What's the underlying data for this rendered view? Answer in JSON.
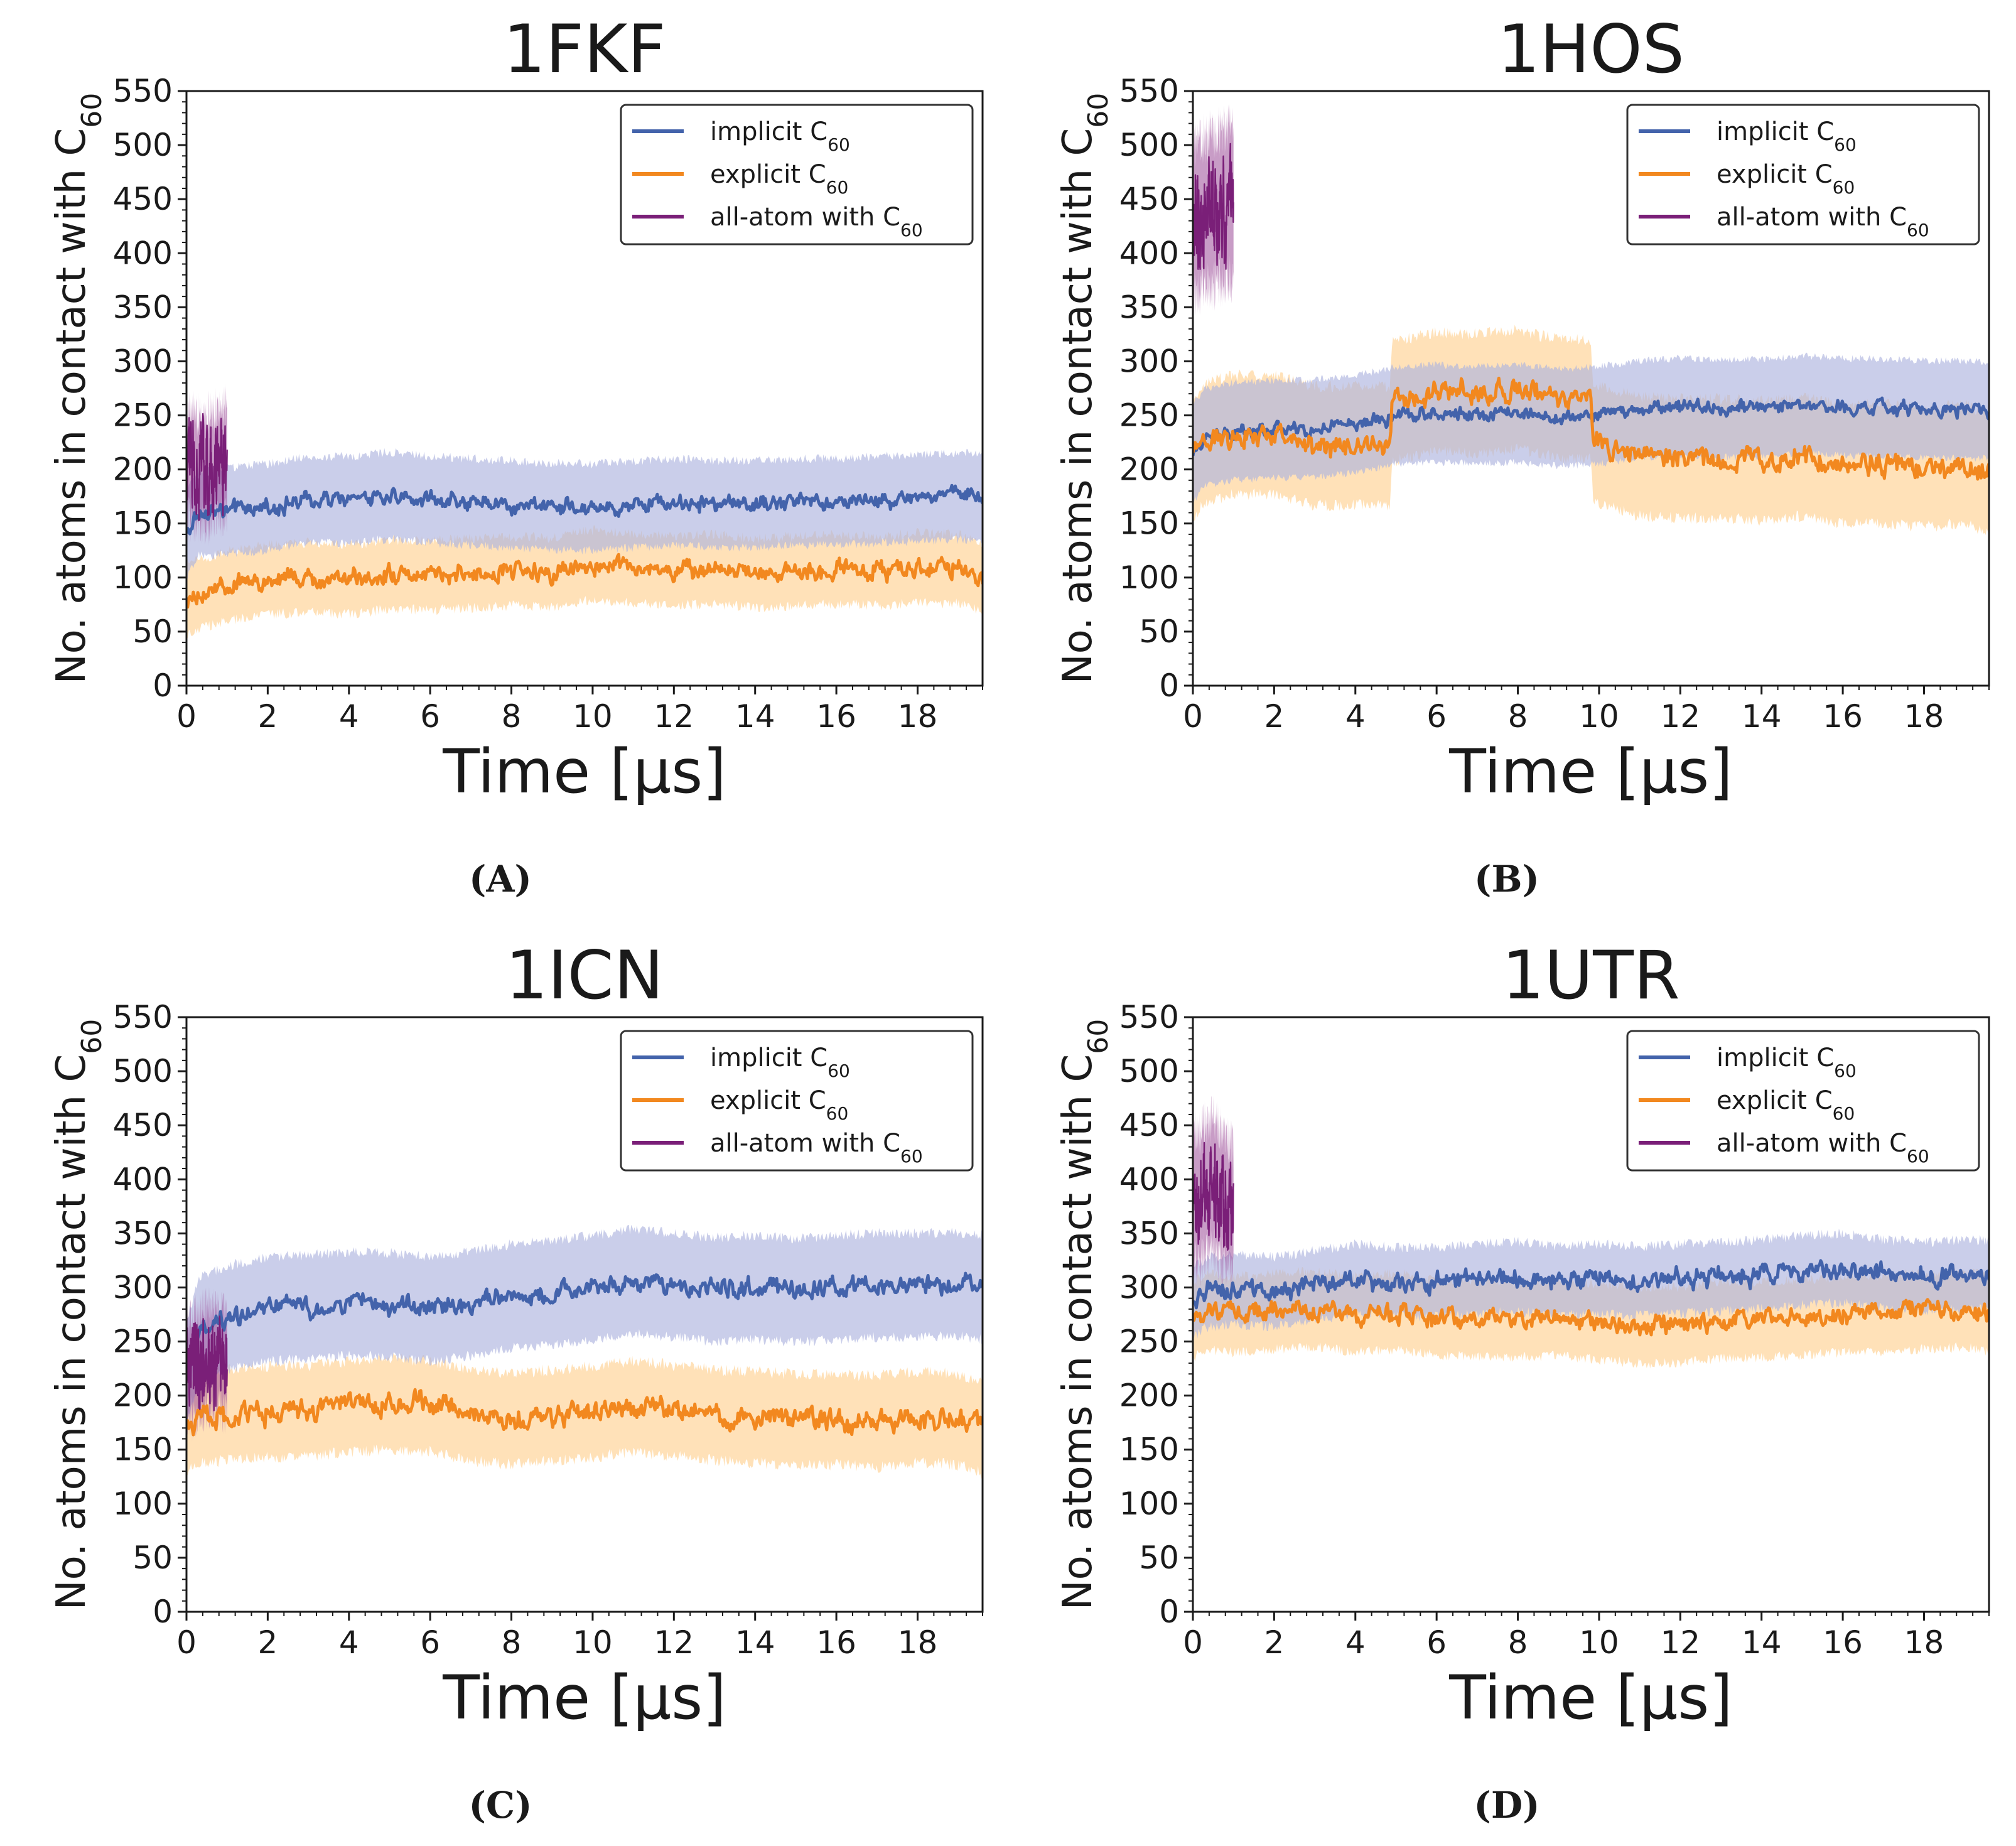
{
  "figure": {
    "panels": [
      "(A)",
      "(B)",
      "(C)",
      "(D)"
    ]
  },
  "colors": {
    "implicit": "#4363ab",
    "explicit": "#f2881f",
    "allatom": "#7a1f78",
    "implicit_band": "#aeb3de",
    "explicit_band": "#ffd9a6",
    "allatom_band": "#9a4a98"
  },
  "chart_data": [
    {
      "type": "line",
      "title": "1FKF",
      "caption": "(A)",
      "xlabel": "Time [μs]",
      "ylabel": "No. atoms in contact with C",
      "ylabel_sub": "60",
      "xlim": [
        0,
        19.6
      ],
      "ylim": [
        0,
        550
      ],
      "xticks": [
        0,
        2,
        4,
        6,
        8,
        10,
        12,
        14,
        16,
        18
      ],
      "yticks": [
        0,
        50,
        100,
        150,
        200,
        250,
        300,
        350,
        400,
        450,
        500,
        550
      ],
      "legend": {
        "position": "top-right",
        "entries": [
          {
            "key": "implicit",
            "label": "implicit C",
            "sub": "60"
          },
          {
            "key": "explicit",
            "label": "explicit C",
            "sub": "60"
          },
          {
            "key": "allatom",
            "label": "all-atom with C",
            "sub": "60"
          }
        ]
      },
      "series": [
        {
          "key": "implicit",
          "name": "implicit C60",
          "x": [
            0,
            0.3,
            1,
            2,
            3,
            4,
            5,
            6,
            7,
            8,
            9,
            10,
            11,
            12,
            13,
            14,
            15,
            16,
            17,
            18,
            19,
            19.6
          ],
          "values": [
            140,
            160,
            162,
            165,
            172,
            172,
            176,
            172,
            170,
            168,
            166,
            165,
            168,
            170,
            168,
            168,
            170,
            170,
            172,
            174,
            175,
            175
          ],
          "band": 40,
          "noise": 6
        },
        {
          "key": "explicit",
          "name": "explicit C60",
          "x": [
            0,
            0.3,
            1,
            2,
            3,
            4,
            5,
            6,
            7,
            8,
            9,
            10,
            11,
            12,
            13,
            14,
            15,
            16,
            17,
            18,
            19,
            19.6
          ],
          "values": [
            80,
            85,
            92,
            98,
            100,
            98,
            103,
            102,
            104,
            106,
            105,
            112,
            108,
            106,
            108,
            104,
            106,
            108,
            106,
            109,
            108,
            100
          ],
          "band": 32,
          "noise": 7
        },
        {
          "key": "allatom",
          "name": "all-atom with C60",
          "x": [
            0,
            0.5,
            1.0
          ],
          "values": [
            205,
            200,
            210
          ],
          "band": 50,
          "noise": 32
        }
      ]
    },
    {
      "type": "line",
      "title": "1HOS",
      "caption": "(B)",
      "xlabel": "Time [μs]",
      "ylabel": "No. atoms in contact with C",
      "ylabel_sub": "60",
      "xlim": [
        0,
        19.6
      ],
      "ylim": [
        0,
        550
      ],
      "xticks": [
        0,
        2,
        4,
        6,
        8,
        10,
        12,
        14,
        16,
        18
      ],
      "yticks": [
        0,
        50,
        100,
        150,
        200,
        250,
        300,
        350,
        400,
        450,
        500,
        550
      ],
      "legend": {
        "position": "top-right",
        "entries": [
          {
            "key": "implicit",
            "label": "implicit C",
            "sub": "60"
          },
          {
            "key": "explicit",
            "label": "explicit C",
            "sub": "60"
          },
          {
            "key": "allatom",
            "label": "all-atom with C",
            "sub": "60"
          }
        ]
      },
      "series": [
        {
          "key": "implicit",
          "name": "implicit C60",
          "x": [
            0,
            0.3,
            1,
            2,
            3,
            4,
            5,
            6,
            7,
            8,
            9,
            10,
            11,
            12,
            13,
            14,
            15,
            16,
            17,
            18,
            19,
            19.6
          ],
          "values": [
            215,
            230,
            235,
            237,
            238,
            242,
            250,
            252,
            250,
            252,
            248,
            250,
            256,
            258,
            256,
            257,
            260,
            258,
            257,
            256,
            255,
            255
          ],
          "band": 45,
          "noise": 5
        },
        {
          "key": "explicit",
          "name": "explicit C60",
          "x": [
            0,
            0.3,
            1,
            2,
            3,
            4,
            4.85,
            4.9,
            6,
            7,
            8,
            9,
            9.8,
            9.85,
            11,
            12,
            13,
            14,
            15,
            16,
            17,
            18,
            19,
            19.6
          ],
          "values": [
            210,
            225,
            232,
            232,
            222,
            222,
            222,
            262,
            272,
            270,
            274,
            265,
            265,
            225,
            212,
            210,
            210,
            208,
            212,
            205,
            205,
            202,
            205,
            195
          ],
          "band": 55,
          "noise": 8
        },
        {
          "key": "allatom",
          "name": "all-atom with C60",
          "x": [
            0,
            0.5,
            1.0
          ],
          "values": [
            430,
            440,
            445
          ],
          "band": 70,
          "noise": 35
        }
      ]
    },
    {
      "type": "line",
      "title": "1ICN",
      "caption": "(C)",
      "xlabel": "Time [μs]",
      "ylabel": "No. atoms in contact with C",
      "ylabel_sub": "60",
      "xlim": [
        0,
        19.6
      ],
      "ylim": [
        0,
        550
      ],
      "xticks": [
        0,
        2,
        4,
        6,
        8,
        10,
        12,
        14,
        16,
        18
      ],
      "yticks": [
        0,
        50,
        100,
        150,
        200,
        250,
        300,
        350,
        400,
        450,
        500,
        550
      ],
      "legend": {
        "position": "top-right",
        "entries": [
          {
            "key": "implicit",
            "label": "implicit C",
            "sub": "60"
          },
          {
            "key": "explicit",
            "label": "explicit C",
            "sub": "60"
          },
          {
            "key": "allatom",
            "label": "all-atom with C",
            "sub": "60"
          }
        ]
      },
      "series": [
        {
          "key": "implicit",
          "name": "implicit C60",
          "x": [
            0,
            0.3,
            1,
            2,
            3,
            4,
            5,
            6,
            7,
            8,
            9,
            10,
            11,
            12,
            13,
            14,
            15,
            16,
            17,
            18,
            19,
            19.6
          ],
          "values": [
            220,
            260,
            272,
            280,
            282,
            285,
            284,
            280,
            285,
            292,
            295,
            300,
            306,
            302,
            298,
            300,
            297,
            300,
            302,
            302,
            303,
            300
          ],
          "band": 48,
          "noise": 7
        },
        {
          "key": "explicit",
          "name": "explicit C60",
          "x": [
            0,
            0.3,
            1,
            2,
            3,
            4,
            5,
            6,
            7,
            8,
            9,
            10,
            11,
            12,
            13,
            14,
            15,
            16,
            17,
            18,
            19,
            19.6
          ],
          "values": [
            170,
            180,
            182,
            185,
            186,
            190,
            192,
            190,
            182,
            178,
            182,
            185,
            190,
            186,
            182,
            180,
            178,
            178,
            176,
            180,
            178,
            170
          ],
          "band": 42,
          "noise": 8
        },
        {
          "key": "allatom",
          "name": "all-atom with C60",
          "x": [
            0,
            0.5,
            1.0
          ],
          "values": [
            220,
            235,
            230
          ],
          "band": 45,
          "noise": 32
        }
      ]
    },
    {
      "type": "line",
      "title": "1UTR",
      "caption": "(D)",
      "xlabel": "Time [μs]",
      "ylabel": "No. atoms in contact with C",
      "ylabel_sub": "60",
      "xlim": [
        0,
        19.6
      ],
      "ylim": [
        0,
        550
      ],
      "xticks": [
        0,
        2,
        4,
        6,
        8,
        10,
        12,
        14,
        16,
        18
      ],
      "yticks": [
        0,
        50,
        100,
        150,
        200,
        250,
        300,
        350,
        400,
        450,
        500,
        550
      ],
      "legend": {
        "position": "top-right",
        "entries": [
          {
            "key": "implicit",
            "label": "implicit C",
            "sub": "60"
          },
          {
            "key": "explicit",
            "label": "explicit C",
            "sub": "60"
          },
          {
            "key": "allatom",
            "label": "all-atom with C",
            "sub": "60"
          }
        ]
      },
      "series": [
        {
          "key": "implicit",
          "name": "implicit C60",
          "x": [
            0,
            0.3,
            1,
            2,
            3,
            4,
            5,
            6,
            7,
            8,
            9,
            10,
            11,
            12,
            13,
            14,
            15,
            16,
            17,
            18,
            19,
            19.6
          ],
          "values": [
            285,
            295,
            298,
            296,
            302,
            308,
            305,
            305,
            308,
            310,
            306,
            308,
            306,
            308,
            310,
            312,
            316,
            318,
            312,
            310,
            312,
            312
          ],
          "band": 32,
          "noise": 7
        },
        {
          "key": "explicit",
          "name": "explicit C60",
          "x": [
            0,
            0.3,
            1,
            2,
            3,
            4,
            5,
            6,
            7,
            8,
            9,
            10,
            11,
            12,
            13,
            14,
            15,
            16,
            17,
            18,
            19,
            19.6
          ],
          "values": [
            270,
            278,
            275,
            278,
            280,
            275,
            278,
            272,
            272,
            270,
            272,
            268,
            265,
            265,
            270,
            270,
            272,
            275,
            276,
            278,
            280,
            275
          ],
          "band": 35,
          "noise": 7
        },
        {
          "key": "allatom",
          "name": "all-atom with C60",
          "x": [
            0,
            0.5,
            1.0
          ],
          "values": [
            380,
            395,
            370
          ],
          "band": 60,
          "noise": 35
        }
      ]
    }
  ]
}
